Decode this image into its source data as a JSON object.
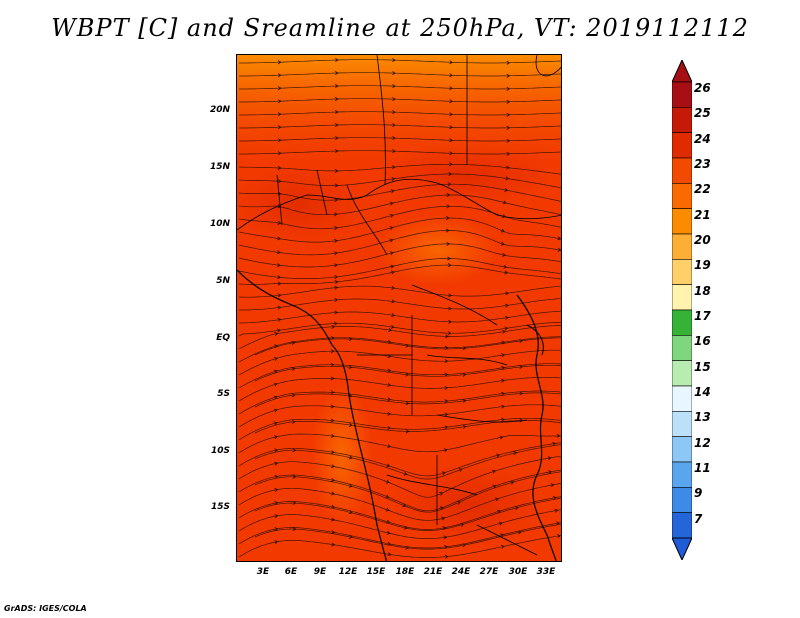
{
  "title": "WBPT [C] and Sreamline at 250hPa, VT: 2019112112",
  "credit": "GrADS: IGES/COLA",
  "map": {
    "field": "wet bulb potential temperature",
    "field_units": "C",
    "level": "250hPa",
    "valid_time": "2019112112",
    "dominant_value_range": [
      22,
      24
    ],
    "background_color": "#f23a00"
  },
  "lat_labels": [
    "20N",
    "15N",
    "10N",
    "5N",
    "EQ",
    "5S",
    "10S",
    "15S"
  ],
  "lon_labels": [
    "3E",
    "6E",
    "9E",
    "12E",
    "15E",
    "18E",
    "21E",
    "24E",
    "27E",
    "30E",
    "33E"
  ],
  "colorbar": {
    "levels": [
      "26",
      "25",
      "24",
      "23",
      "22",
      "21",
      "20",
      "19",
      "18",
      "17",
      "16",
      "15",
      "14",
      "13",
      "12",
      "11",
      "9",
      "7"
    ],
    "colors": [
      "#a50f15",
      "#c61a09",
      "#e02a00",
      "#f24a00",
      "#fa6a00",
      "#fb8c00",
      "#fdae34",
      "#fdd06a",
      "#fff3ad",
      "#36b336",
      "#7fd67f",
      "#b8ecb0",
      "#e8f6ff",
      "#bde0f9",
      "#8cc7f5",
      "#5aa6ee",
      "#3d8be6",
      "#2465d9"
    ],
    "arrow_top_color": "#a50f15",
    "arrow_bottom_color": "#1e5bd6"
  }
}
